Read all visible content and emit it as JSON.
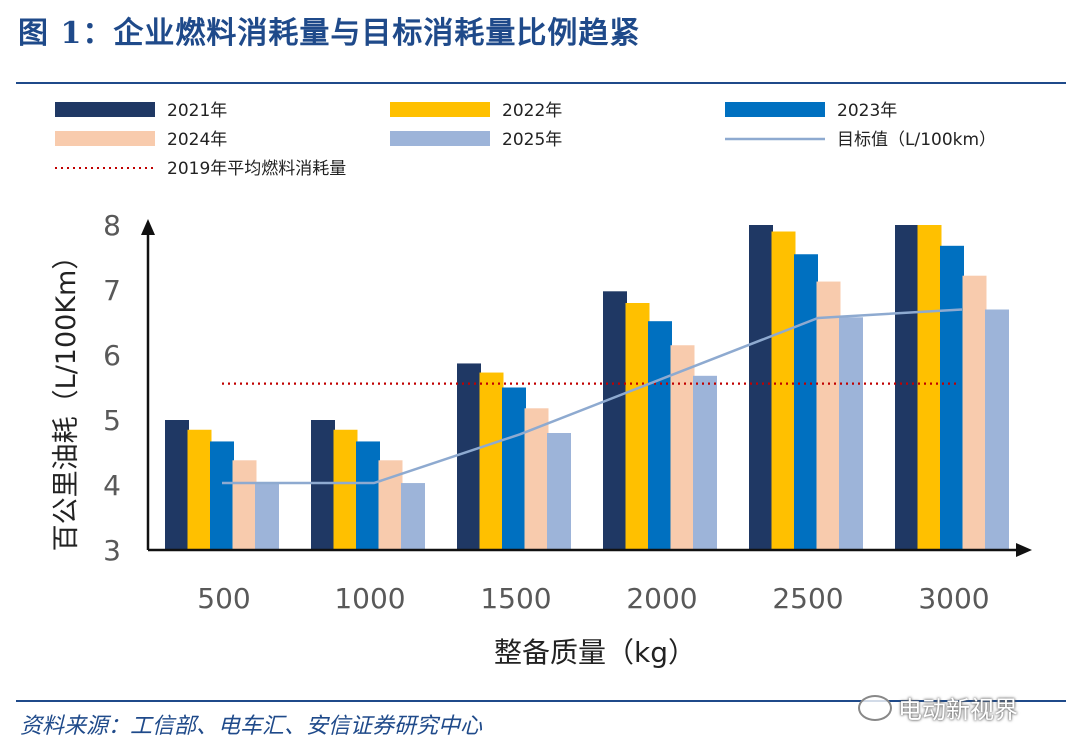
{
  "figure": {
    "title": "图 1：企业燃料消耗量与目标消耗量比例趋紧",
    "source": "资料来源：工信部、电车汇、安信证券研究中心",
    "watermark": "电动新视界",
    "watermark_icon": "wechat-icon"
  },
  "colors": {
    "rule": "#1f4a8a",
    "title": "#1f4a8a",
    "axis": "#111111",
    "tick_text": "#595959",
    "target_line": "#8eaad0",
    "baseline_line": "#c00000"
  },
  "chart_data": {
    "type": "bar",
    "xlabel": "整备质量（kg）",
    "ylabel": "百公里油耗（L/100Km）",
    "ylim": [
      3,
      8
    ],
    "yticks": [
      "3",
      "4",
      "5",
      "6",
      "7",
      "8"
    ],
    "categories": [
      "500",
      "1000",
      "1500",
      "2000",
      "2500",
      "3000"
    ],
    "grid": false,
    "legend_position": "top",
    "series": [
      {
        "name": "2021年",
        "color": "#1f3864",
        "values": [
          5.0,
          5.0,
          5.87,
          6.98,
          8.0,
          8.0
        ]
      },
      {
        "name": "2022年",
        "color": "#ffc000",
        "values": [
          4.85,
          4.85,
          5.73,
          6.8,
          7.9,
          8.0
        ]
      },
      {
        "name": "2023年",
        "color": "#0070c0",
        "values": [
          4.67,
          4.67,
          5.5,
          6.52,
          7.55,
          7.68
        ]
      },
      {
        "name": "2024年",
        "color": "#f8cbad",
        "values": [
          4.38,
          4.38,
          5.18,
          6.15,
          7.13,
          7.22
        ]
      },
      {
        "name": "2025年",
        "color": "#9db4d9",
        "values": [
          4.03,
          4.03,
          4.8,
          5.68,
          6.58,
          6.7
        ]
      }
    ],
    "target_line": {
      "name": "目标值（L/100km）",
      "values": [
        4.03,
        4.03,
        4.78,
        5.67,
        6.57,
        6.7
      ]
    },
    "reference_line": {
      "name": "2019年平均燃料消耗量",
      "value": 5.56
    }
  }
}
